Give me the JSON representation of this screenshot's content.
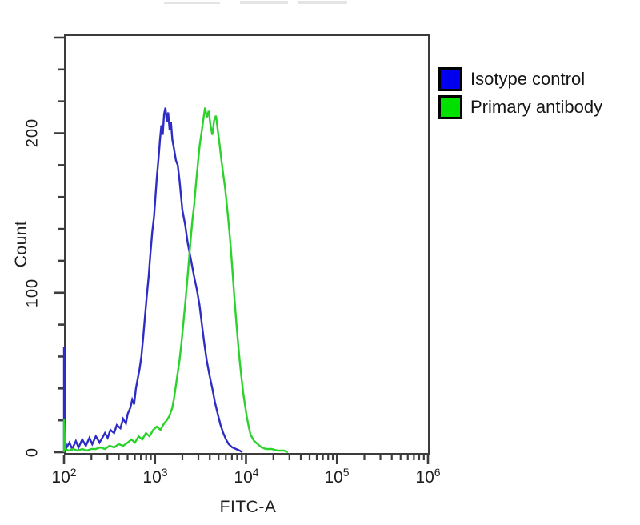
{
  "chart_data": {
    "type": "line",
    "subtype": "flow-cytometry-histogram-overlay",
    "title": "",
    "xlabel": "FITC-A",
    "ylabel": "Count",
    "x_scale": "log10",
    "x_range_log10": [
      2,
      6
    ],
    "x_ticks": [
      {
        "base": "10",
        "exp": "2"
      },
      {
        "base": "10",
        "exp": "3"
      },
      {
        "base": "10",
        "exp": "4"
      },
      {
        "base": "10",
        "exp": "5"
      },
      {
        "base": "10",
        "exp": "6"
      }
    ],
    "y_range": [
      0,
      262
    ],
    "y_tick_labels": [
      "0",
      "100",
      "200"
    ],
    "y_major_ticks": [
      0,
      100,
      200
    ],
    "y_minor_tick_step": 20,
    "grid": false,
    "legend_position": "outside-right-top",
    "axis_color": "#3c3c3c",
    "series": [
      {
        "name": "Isotype control",
        "color": "#2d2dc4",
        "legend_color": "#0000ee",
        "points": [
          [
            2.0,
            0
          ],
          [
            2.0,
            66
          ],
          [
            2.01,
            8
          ],
          [
            2.03,
            3
          ],
          [
            2.06,
            6
          ],
          [
            2.09,
            2
          ],
          [
            2.13,
            7
          ],
          [
            2.16,
            3
          ],
          [
            2.2,
            8
          ],
          [
            2.24,
            4
          ],
          [
            2.28,
            9
          ],
          [
            2.31,
            5
          ],
          [
            2.35,
            10
          ],
          [
            2.39,
            6
          ],
          [
            2.42,
            9
          ],
          [
            2.45,
            12
          ],
          [
            2.48,
            9
          ],
          [
            2.51,
            14
          ],
          [
            2.55,
            12
          ],
          [
            2.58,
            17
          ],
          [
            2.62,
            15
          ],
          [
            2.65,
            21
          ],
          [
            2.68,
            18
          ],
          [
            2.7,
            24
          ],
          [
            2.73,
            28
          ],
          [
            2.75,
            33
          ],
          [
            2.77,
            30
          ],
          [
            2.79,
            40
          ],
          [
            2.81,
            46
          ],
          [
            2.83,
            52
          ],
          [
            2.85,
            60
          ],
          [
            2.87,
            72
          ],
          [
            2.89,
            85
          ],
          [
            2.91,
            98
          ],
          [
            2.93,
            110
          ],
          [
            2.95,
            125
          ],
          [
            2.97,
            138
          ],
          [
            2.99,
            148
          ],
          [
            3.005,
            160
          ],
          [
            3.02,
            172
          ],
          [
            3.04,
            185
          ],
          [
            3.055,
            196
          ],
          [
            3.07,
            205
          ],
          [
            3.085,
            199
          ],
          [
            3.1,
            212
          ],
          [
            3.115,
            216
          ],
          [
            3.13,
            207
          ],
          [
            3.145,
            213
          ],
          [
            3.16,
            202
          ],
          [
            3.175,
            207
          ],
          [
            3.19,
            196
          ],
          [
            3.21,
            190
          ],
          [
            3.23,
            183
          ],
          [
            3.25,
            180
          ],
          [
            3.27,
            170
          ],
          [
            3.3,
            152
          ],
          [
            3.33,
            143
          ],
          [
            3.36,
            131
          ],
          [
            3.4,
            119
          ],
          [
            3.43,
            110
          ],
          [
            3.46,
            102
          ],
          [
            3.49,
            92
          ],
          [
            3.52,
            78
          ],
          [
            3.545,
            67
          ],
          [
            3.57,
            57
          ],
          [
            3.6,
            48
          ],
          [
            3.63,
            40
          ],
          [
            3.66,
            31
          ],
          [
            3.69,
            24
          ],
          [
            3.72,
            17
          ],
          [
            3.75,
            12
          ],
          [
            3.78,
            8
          ],
          [
            3.81,
            5
          ],
          [
            3.85,
            3
          ],
          [
            3.89,
            2
          ],
          [
            3.93,
            1
          ],
          [
            3.96,
            0
          ]
        ]
      },
      {
        "name": "Primary antibody",
        "color": "#2bd22b",
        "legend_color": "#00e000",
        "points": [
          [
            2.0,
            0
          ],
          [
            2.0,
            21
          ],
          [
            2.012,
            2
          ],
          [
            2.05,
            1
          ],
          [
            2.1,
            2
          ],
          [
            2.15,
            1
          ],
          [
            2.2,
            2
          ],
          [
            2.25,
            1
          ],
          [
            2.3,
            2
          ],
          [
            2.35,
            2
          ],
          [
            2.4,
            3
          ],
          [
            2.45,
            2
          ],
          [
            2.5,
            4
          ],
          [
            2.55,
            3
          ],
          [
            2.6,
            5
          ],
          [
            2.65,
            4
          ],
          [
            2.7,
            6
          ],
          [
            2.74,
            8
          ],
          [
            2.78,
            6
          ],
          [
            2.82,
            10
          ],
          [
            2.86,
            8
          ],
          [
            2.9,
            12
          ],
          [
            2.94,
            10
          ],
          [
            2.98,
            14
          ],
          [
            3.02,
            16
          ],
          [
            3.06,
            14
          ],
          [
            3.1,
            18
          ],
          [
            3.13,
            20
          ],
          [
            3.16,
            23
          ],
          [
            3.19,
            28
          ],
          [
            3.21,
            34
          ],
          [
            3.23,
            42
          ],
          [
            3.25,
            50
          ],
          [
            3.27,
            58
          ],
          [
            3.29,
            68
          ],
          [
            3.31,
            80
          ],
          [
            3.33,
            92
          ],
          [
            3.35,
            105
          ],
          [
            3.37,
            118
          ],
          [
            3.39,
            132
          ],
          [
            3.41,
            145
          ],
          [
            3.43,
            155
          ],
          [
            3.45,
            168
          ],
          [
            3.47,
            180
          ],
          [
            3.49,
            192
          ],
          [
            3.51,
            200
          ],
          [
            3.53,
            208
          ],
          [
            3.55,
            216
          ],
          [
            3.57,
            210
          ],
          [
            3.59,
            214
          ],
          [
            3.61,
            205
          ],
          [
            3.63,
            199
          ],
          [
            3.65,
            208
          ],
          [
            3.67,
            211
          ],
          [
            3.69,
            202
          ],
          [
            3.71,
            193
          ],
          [
            3.73,
            183
          ],
          [
            3.75,
            174
          ],
          [
            3.77,
            166
          ],
          [
            3.79,
            155
          ],
          [
            3.81,
            143
          ],
          [
            3.83,
            130
          ],
          [
            3.85,
            115
          ],
          [
            3.87,
            99
          ],
          [
            3.89,
            84
          ],
          [
            3.91,
            70
          ],
          [
            3.93,
            58
          ],
          [
            3.95,
            47
          ],
          [
            3.97,
            37
          ],
          [
            3.99,
            29
          ],
          [
            4.01,
            22
          ],
          [
            4.03,
            16
          ],
          [
            4.05,
            11
          ],
          [
            4.09,
            7
          ],
          [
            4.13,
            5
          ],
          [
            4.17,
            3
          ],
          [
            4.22,
            2
          ],
          [
            4.28,
            2
          ],
          [
            4.35,
            1
          ],
          [
            4.42,
            1
          ],
          [
            4.46,
            0
          ]
        ]
      }
    ]
  },
  "legend": {
    "items": [
      {
        "label": "Isotype control"
      },
      {
        "label": "Primary antibody"
      }
    ]
  }
}
